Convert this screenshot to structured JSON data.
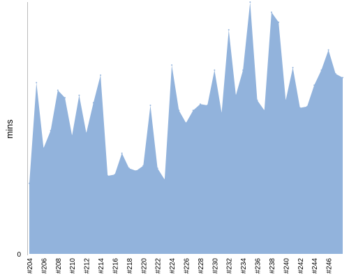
{
  "chart_data": {
    "type": "area",
    "ylabel": "mins",
    "xlabel": "",
    "y_ticks": [
      "0"
    ],
    "ylim": [
      0,
      100
    ],
    "fill_color": "#92b3dc",
    "axis_color": "#bbbbbb",
    "x_tick_labels": [
      "#204",
      "#206",
      "#208",
      "#210",
      "#212",
      "#214",
      "#216",
      "#218",
      "#220",
      "#222",
      "#224",
      "#226",
      "#228",
      "#230",
      "#232",
      "#234",
      "#236",
      "#238",
      "#240",
      "#242",
      "#244",
      "#246"
    ],
    "x": [
      "#204",
      "#205",
      "#206",
      "#207",
      "#208",
      "#209",
      "#210",
      "#211",
      "#212",
      "#213",
      "#214",
      "#215",
      "#216",
      "#217",
      "#218",
      "#219",
      "#220",
      "#221",
      "#222",
      "#223",
      "#224",
      "#225",
      "#226",
      "#227",
      "#228",
      "#229",
      "#230",
      "#231",
      "#232",
      "#233",
      "#234",
      "#235",
      "#236",
      "#237",
      "#238",
      "#239",
      "#240",
      "#241",
      "#242",
      "#243",
      "#244",
      "#245",
      "#246",
      "#247",
      "#248"
    ],
    "values": [
      28,
      68,
      42,
      49,
      65,
      62,
      47,
      63,
      48,
      60,
      71,
      31,
      31.5,
      40,
      34,
      33,
      35,
      59,
      34,
      29.5,
      75,
      57,
      52,
      57,
      59.5,
      59,
      73,
      56,
      89,
      63,
      73,
      100,
      61,
      57,
      96,
      92,
      61,
      74,
      58,
      58.5,
      67,
      73,
      81,
      71.5,
      70
    ]
  }
}
